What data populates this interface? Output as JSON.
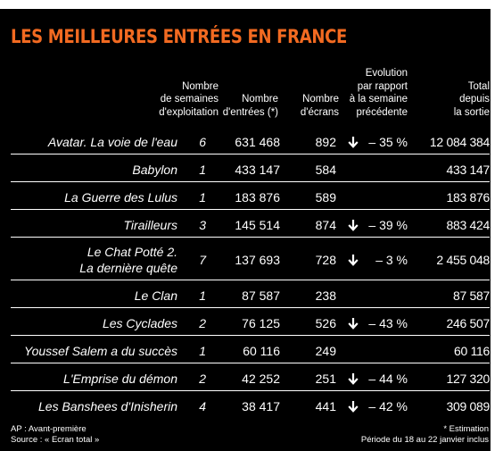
{
  "title": "LES MEILLEURES ENTRÉES EN FRANCE",
  "headers": {
    "weeks": [
      "Nombre",
      "de semaines",
      "d'exploitation"
    ],
    "entries": [
      "Nombre",
      "d'entrées (*)"
    ],
    "screens": [
      "Nombre",
      "d'écrans"
    ],
    "evolution": [
      "Evolution",
      "par rapport",
      "à la semaine",
      "précédente"
    ],
    "total": [
      "Total",
      "depuis",
      "la sortie"
    ]
  },
  "rows": [
    {
      "title": [
        "Avatar. La voie de l'eau"
      ],
      "weeks": "6",
      "entries": "631 468",
      "screens": "892",
      "arrow": true,
      "evolution": "– 35 %",
      "total": "12 084 384"
    },
    {
      "title": [
        "Babylon"
      ],
      "weeks": "1",
      "entries": "433 147",
      "screens": "584",
      "arrow": false,
      "evolution": "",
      "total": "433 147"
    },
    {
      "title": [
        "La Guerre des Lulus"
      ],
      "weeks": "1",
      "entries": "183 876",
      "screens": "589",
      "arrow": false,
      "evolution": "",
      "total": "183 876"
    },
    {
      "title": [
        "Tirailleurs"
      ],
      "weeks": "3",
      "entries": "145 514",
      "screens": "874",
      "arrow": true,
      "evolution": "– 39 %",
      "total": "883 424"
    },
    {
      "title": [
        "Le Chat Potté 2.",
        "La dernière quête"
      ],
      "weeks": "7",
      "entries": "137 693",
      "screens": "728",
      "arrow": true,
      "evolution": "– 3 %",
      "total": "2 455 048"
    },
    {
      "title": [
        "Le Clan"
      ],
      "weeks": "1",
      "entries": "87 587",
      "screens": "238",
      "arrow": false,
      "evolution": "",
      "total": "87 587"
    },
    {
      "title": [
        "Les Cyclades"
      ],
      "weeks": "2",
      "entries": "76 125",
      "screens": "526",
      "arrow": true,
      "evolution": "– 43 %",
      "total": "246 507"
    },
    {
      "title": [
        "Youssef Salem a du succès"
      ],
      "weeks": "1",
      "entries": "60 116",
      "screens": "249",
      "arrow": false,
      "evolution": "",
      "total": "60 116"
    },
    {
      "title": [
        "L'Emprise du démon"
      ],
      "weeks": "2",
      "entries": "42 252",
      "screens": "251",
      "arrow": true,
      "evolution": "– 44 %",
      "total": "127 320"
    },
    {
      "title": [
        "Les Banshees d'Inisherin"
      ],
      "weeks": "4",
      "entries": "38 417",
      "screens": "441",
      "arrow": true,
      "evolution": "– 42 %",
      "total": "309 089"
    }
  ],
  "footer": {
    "left": [
      "AP : Avant-première",
      "Source : « Ecran total »"
    ],
    "right": [
      "* Estimation",
      "Période du 18 au 22 janvier inclus"
    ]
  },
  "colors": {
    "title": "#f26a21",
    "background": "#000000",
    "text": "#ffffff"
  },
  "icons": {
    "decrease": "arrow-down-icon"
  }
}
